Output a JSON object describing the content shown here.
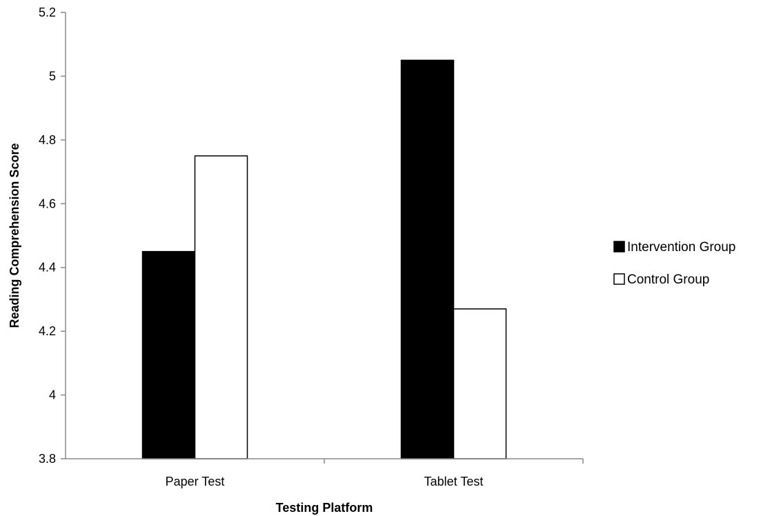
{
  "chart_data": {
    "type": "bar",
    "xlabel": "Testing Platform",
    "ylabel": "Reading Comprehension Score",
    "categories": [
      "Paper Test",
      "Tablet Test"
    ],
    "ylim": [
      3.8,
      5.2
    ],
    "yticks": [
      "3.8",
      "4",
      "4.2",
      "4.4",
      "4.6",
      "4.8",
      "5",
      "5.2"
    ],
    "grid": false,
    "legend_position": "right",
    "series": [
      {
        "name": "Intervention Group",
        "values": [
          4.45,
          5.05
        ],
        "fill": "#000000"
      },
      {
        "name": "Control Group",
        "values": [
          4.75,
          4.27
        ],
        "fill": "#ffffff"
      }
    ]
  }
}
